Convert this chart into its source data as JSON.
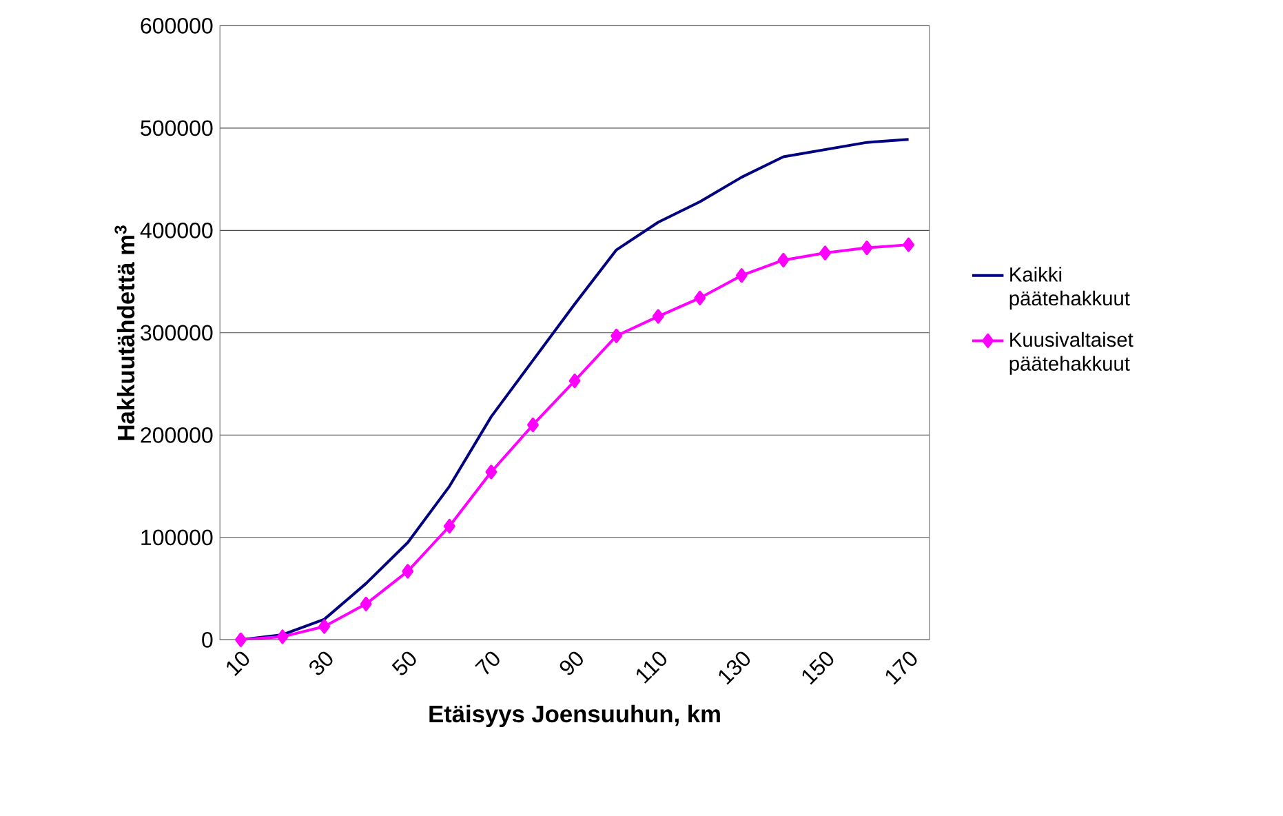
{
  "chart_data": {
    "type": "line",
    "xlabel": "Etäisyys Joensuuhun, km",
    "ylabel": "Hakkuutähdettä m$^{3}$",
    "categories": [
      "10",
      null,
      "30",
      null,
      "50",
      null,
      "70",
      null,
      "90",
      null,
      "110",
      null,
      "130",
      null,
      "150",
      null,
      "170"
    ],
    "series": [
      {
        "name": "Kaikki päätehakkuut",
        "color": "#000080",
        "marker": "none",
        "values": [
          0,
          5000,
          20000,
          55000,
          95000,
          150000,
          218000,
          273000,
          328000,
          381000,
          408000,
          428000,
          452000,
          472000,
          479000,
          486000,
          489000
        ]
      },
      {
        "name": "Kuusivaltaiset päätehakkuut",
        "color": "#ff00ff",
        "marker": "diamond",
        "values": [
          0,
          3000,
          13000,
          35000,
          67000,
          111000,
          164000,
          210000,
          253000,
          297000,
          316000,
          334000,
          356000,
          371000,
          378000,
          383000,
          386000
        ]
      }
    ],
    "ylim": [
      0,
      600000
    ],
    "yticks": [
      0,
      100000,
      200000,
      300000,
      400000,
      500000,
      600000
    ],
    "grid": "y",
    "legend": "right",
    "line_style": "solid"
  }
}
